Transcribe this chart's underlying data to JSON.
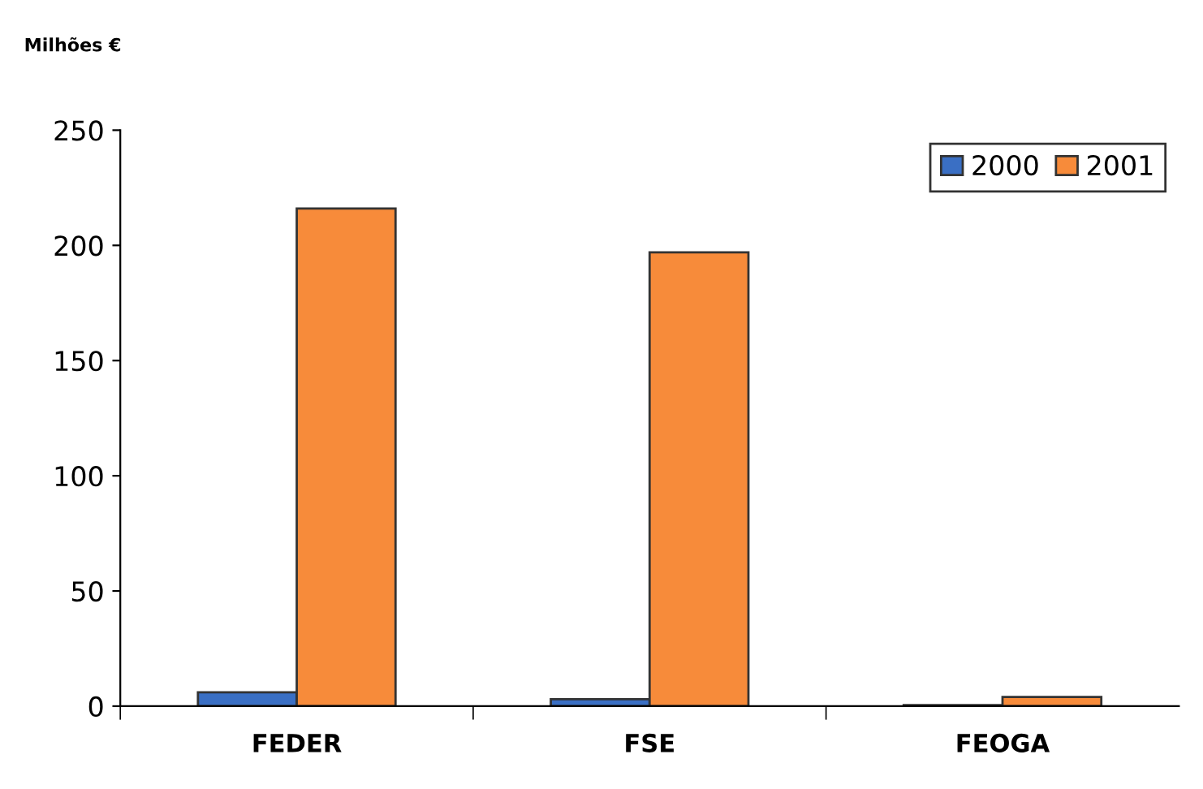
{
  "chart_data": {
    "type": "bar",
    "ylabel": "Milhões €",
    "categories": [
      "FEDER",
      "FSE",
      "FEOGA"
    ],
    "series": [
      {
        "name": "2000",
        "color": "#3a6fc4",
        "values": [
          6,
          3,
          0.5
        ]
      },
      {
        "name": "2001",
        "color": "#f78b3a",
        "values": [
          216,
          197,
          4
        ]
      }
    ],
    "ylim": [
      0,
      250
    ],
    "yticks": [
      0,
      50,
      100,
      150,
      200,
      250
    ],
    "grid": false,
    "legend": "top right"
  }
}
